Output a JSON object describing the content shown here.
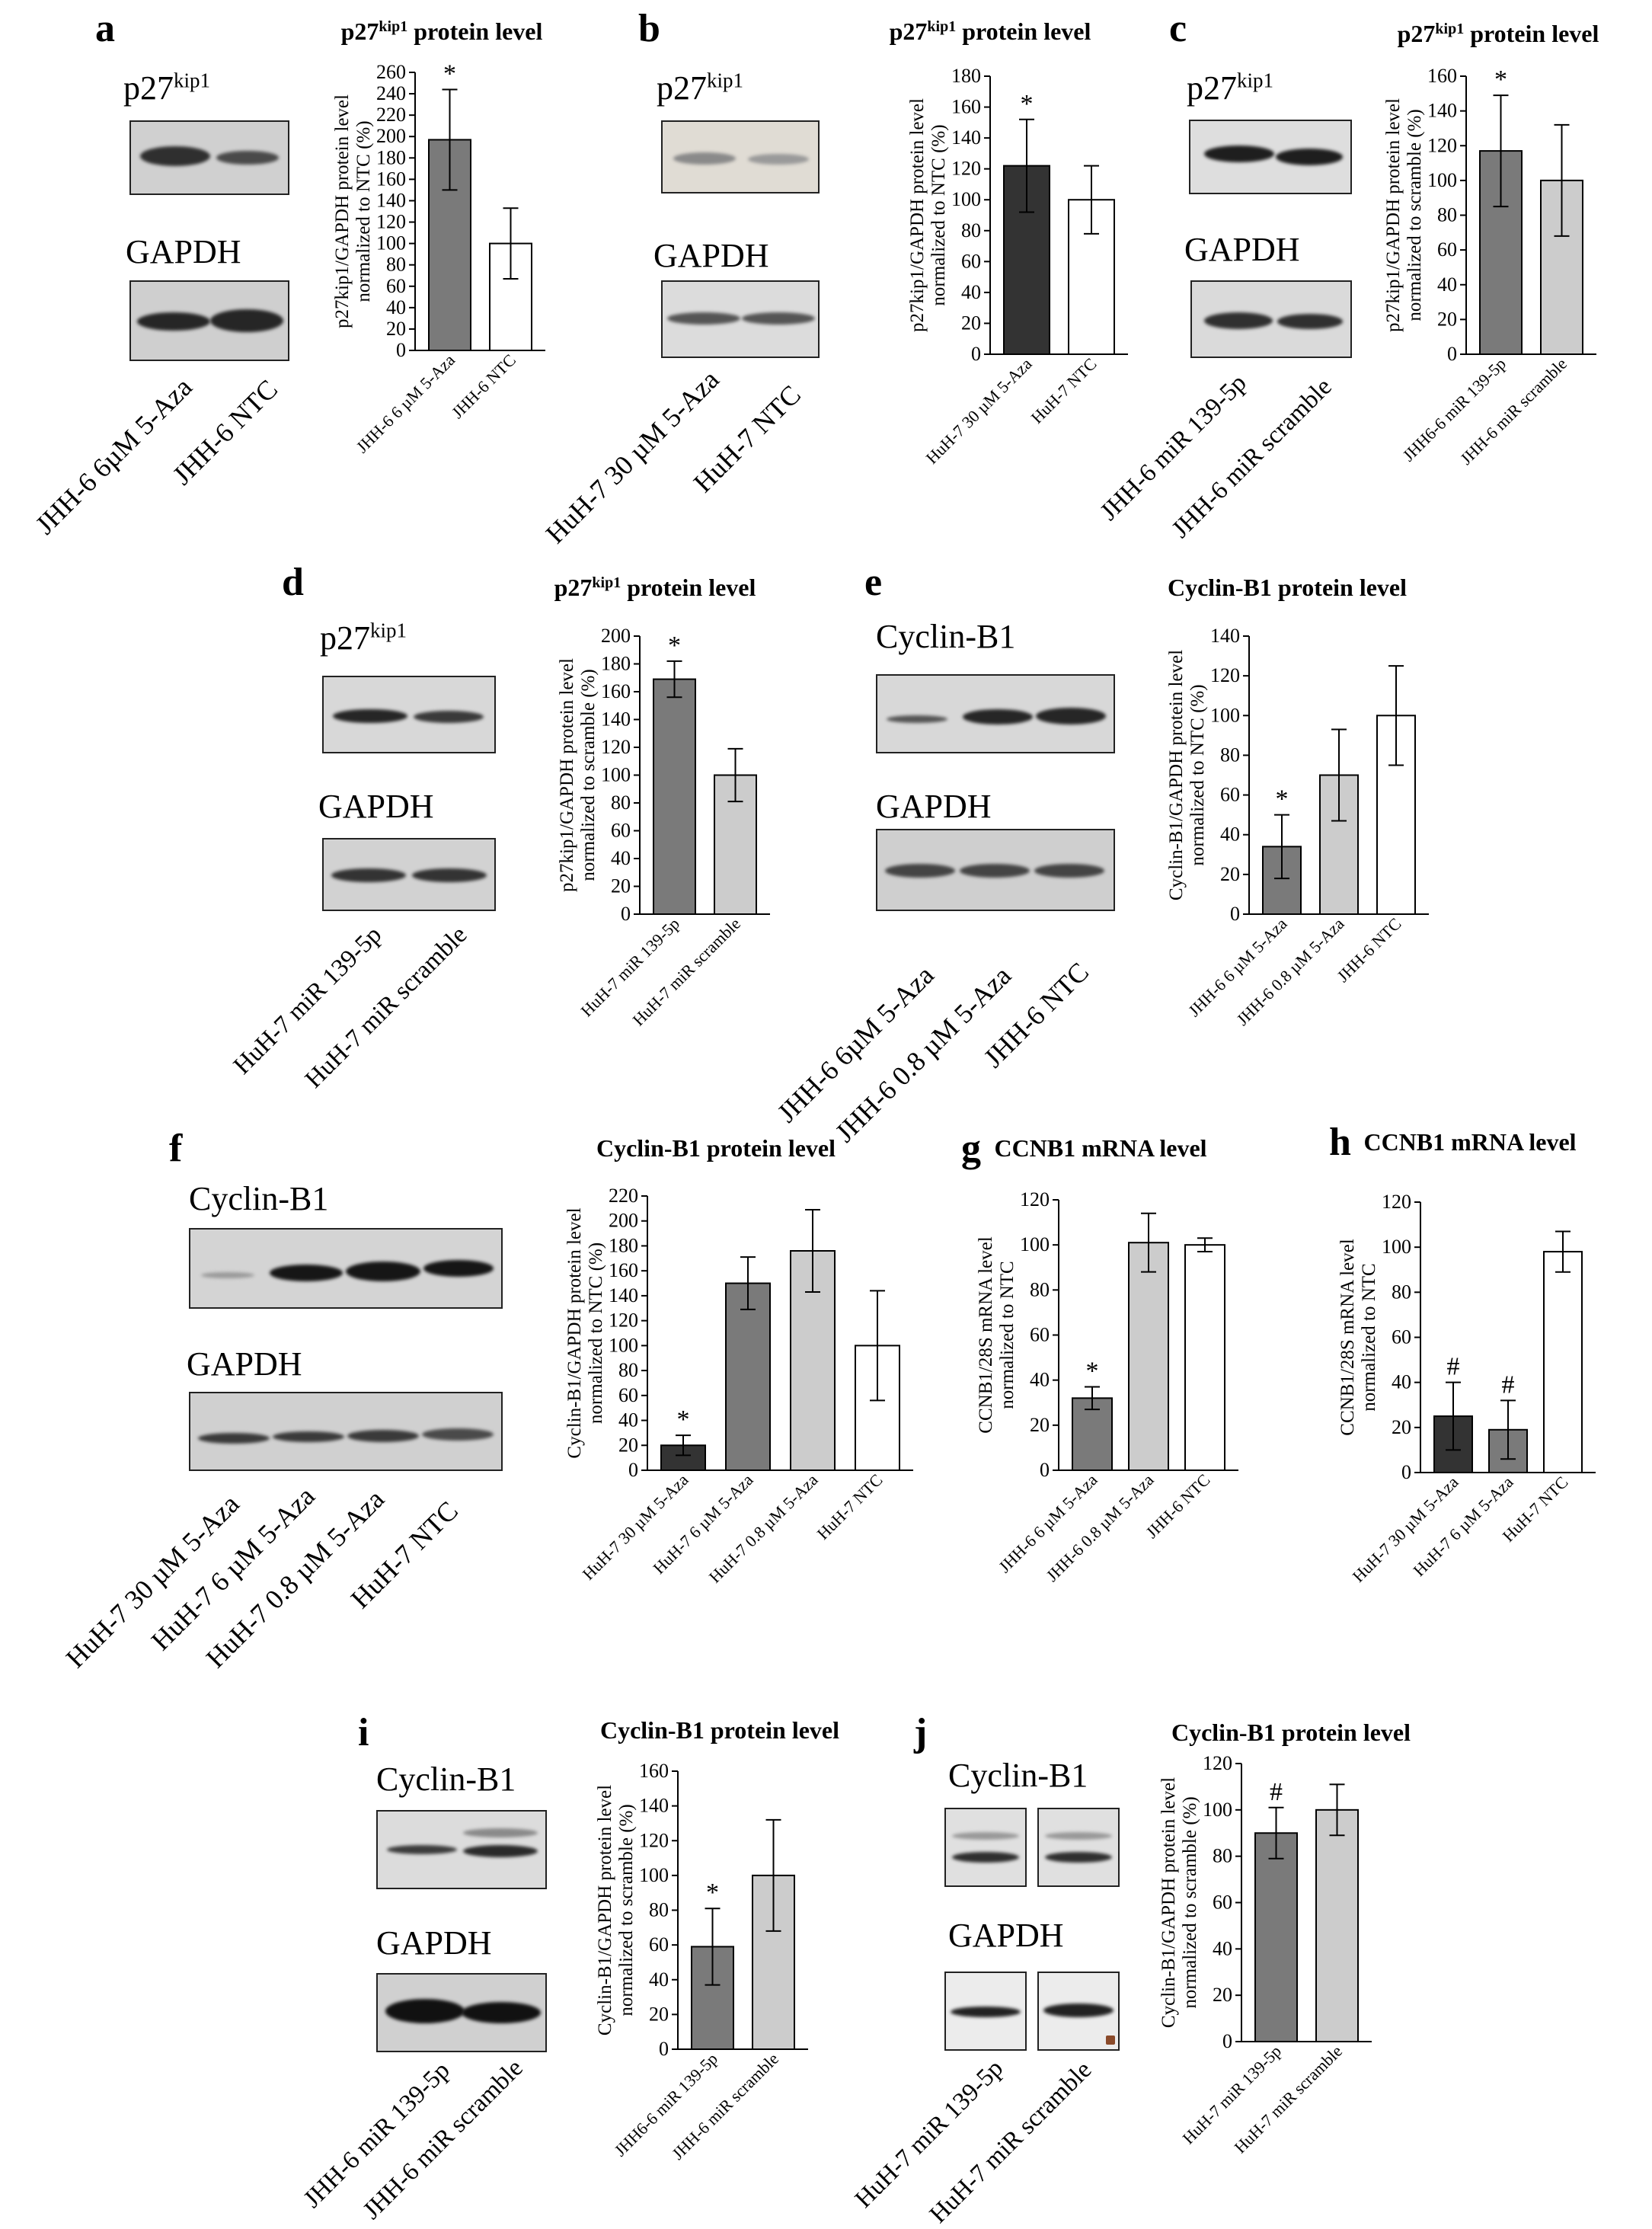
{
  "panels": [
    {
      "id": "a",
      "letter": "a",
      "top_label": "p27",
      "top_label_sup": "kip1",
      "bottom_label": "GAPDH",
      "lanes": [
        "JHH-6 6µM 5-Aza",
        "JHH-6 NTC"
      ],
      "chart_data": {
        "type": "bar",
        "title": "p27kip1 protein level",
        "title_base": "p27",
        "title_sup": "kip1",
        "title_rest": " protein level",
        "ylabel_line1": "p27kip1/GAPDH protein level",
        "ylabel_line2": "normalized to NTC (%)",
        "ylim": [
          0,
          260
        ],
        "yticks": [
          0,
          20,
          40,
          60,
          80,
          100,
          120,
          140,
          160,
          180,
          200,
          220,
          240,
          260
        ],
        "categories": [
          "JHH-6 6 µM 5-Aza",
          "JHH-6 NTC"
        ],
        "values": [
          197,
          100
        ],
        "errors": [
          47,
          33
        ],
        "colors": [
          "#7a7a7a",
          "#ffffff"
        ],
        "annotations": [
          "*",
          ""
        ]
      }
    },
    {
      "id": "b",
      "letter": "b",
      "top_label": "p27",
      "top_label_sup": "kip1",
      "bottom_label": "GAPDH",
      "lanes": [
        "HuH-7 30 µM 5-Aza",
        "HuH-7 NTC"
      ],
      "chart_data": {
        "type": "bar",
        "title": "p27kip1 protein level",
        "title_base": "p27",
        "title_sup": "kip1",
        "title_rest": " protein level",
        "ylabel_line1": "p27kip1/GAPDH protein level",
        "ylabel_line2": "normalized to NTC (%)",
        "ylim": [
          0,
          180
        ],
        "yticks": [
          0,
          20,
          40,
          60,
          80,
          100,
          120,
          140,
          160,
          180
        ],
        "categories": [
          "HuH-7 30 µM 5-Aza",
          "HuH-7 NTC"
        ],
        "values": [
          122,
          100
        ],
        "errors": [
          30,
          22
        ],
        "colors": [
          "#333333",
          "#ffffff"
        ],
        "annotations": [
          "*",
          ""
        ]
      }
    },
    {
      "id": "c",
      "letter": "c",
      "top_label": "p27",
      "top_label_sup": "kip1",
      "bottom_label": "GAPDH",
      "lanes": [
        "JHH-6 miR 139-5p",
        "JHH-6 miR scramble"
      ],
      "chart_data": {
        "type": "bar",
        "title": "p27kip1 protein level",
        "title_base": "p27",
        "title_sup": "kip1",
        "title_rest": " protein level",
        "ylabel_line1": "p27kip1/GAPDH protein level",
        "ylabel_line2": "normalized to scramble (%)",
        "ylim": [
          0,
          160
        ],
        "yticks": [
          0,
          20,
          40,
          60,
          80,
          100,
          120,
          140,
          160
        ],
        "categories": [
          "JHH6-6 miR 139-5p",
          "JHH-6 miR scramble"
        ],
        "values": [
          117,
          100
        ],
        "errors": [
          32,
          32
        ],
        "colors": [
          "#7a7a7a",
          "#cccccc"
        ],
        "annotations": [
          "*",
          ""
        ]
      }
    },
    {
      "id": "d",
      "letter": "d",
      "top_label": "p27",
      "top_label_sup": "kip1",
      "bottom_label": "GAPDH",
      "lanes": [
        "HuH-7 miR 139-5p",
        "HuH-7 miR scramble"
      ],
      "chart_data": {
        "type": "bar",
        "title": "p27kip1 protein level",
        "title_base": "p27",
        "title_sup": "kip1",
        "title_rest": " protein level",
        "ylabel_line1": "p27kip1/GAPDH protein level",
        "ylabel_line2": "normalized to scramble (%)",
        "ylim": [
          0,
          200
        ],
        "yticks": [
          0,
          20,
          40,
          60,
          80,
          100,
          120,
          140,
          160,
          180,
          200
        ],
        "categories": [
          "HuH-7 miR 139-5p",
          "HuH-7 miR scramble"
        ],
        "values": [
          169,
          100
        ],
        "errors": [
          13,
          19
        ],
        "colors": [
          "#7a7a7a",
          "#cccccc"
        ],
        "annotations": [
          "*",
          ""
        ]
      }
    },
    {
      "id": "e",
      "letter": "e",
      "top_label": "Cyclin-B1",
      "top_label_sup": "",
      "bottom_label": "GAPDH",
      "lanes": [
        "JHH-6 6µM 5-Aza",
        "JHH-6 0.8 µM 5-Aza",
        "JHH-6 NTC"
      ],
      "chart_data": {
        "type": "bar",
        "title": "Cyclin-B1 protein level",
        "title_base": "Cyclin-B1 protein level",
        "title_sup": "",
        "title_rest": "",
        "ylabel_line1": "Cyclin-B1/GAPDH protein level",
        "ylabel_line2": "normalized to NTC (%)",
        "ylim": [
          0,
          140
        ],
        "yticks": [
          0,
          20,
          40,
          60,
          80,
          100,
          120,
          140
        ],
        "categories": [
          "JHH-6 6 µM 5-Aza",
          "JHH-6 0.8 µM 5-Aza",
          "JHH-6 NTC"
        ],
        "values": [
          34,
          70,
          100
        ],
        "errors": [
          16,
          23,
          25
        ],
        "colors": [
          "#7a7a7a",
          "#cccccc",
          "#ffffff"
        ],
        "annotations": [
          "*",
          "",
          ""
        ]
      }
    },
    {
      "id": "f",
      "letter": "f",
      "top_label": "Cyclin-B1",
      "top_label_sup": "",
      "bottom_label": "GAPDH",
      "lanes": [
        "HuH-7 30 µM 5-Aza",
        "HuH-7 6 µM 5-Aza",
        "HuH-7 0.8 µM 5-Aza",
        "HuH-7 NTC"
      ],
      "chart_data": {
        "type": "bar",
        "title": "Cyclin-B1 protein level",
        "title_base": "Cyclin-B1 protein level",
        "title_sup": "",
        "title_rest": "",
        "ylabel_line1": "Cyclin-B1/GAPDH protein level",
        "ylabel_line2": "normalized to NTC (%)",
        "ylim": [
          0,
          220
        ],
        "yticks": [
          0,
          20,
          40,
          60,
          80,
          100,
          120,
          140,
          160,
          180,
          200,
          220
        ],
        "categories": [
          "HuH-7 30 µM 5-Aza",
          "HuH-7 6 µM 5-Aza",
          "HuH-7 0.8 µM 5-Aza",
          "HuH-7 NTC"
        ],
        "values": [
          20,
          150,
          176,
          100
        ],
        "errors": [
          8,
          21,
          33,
          44
        ],
        "colors": [
          "#333333",
          "#7a7a7a",
          "#cccccc",
          "#ffffff"
        ],
        "annotations": [
          "*",
          "",
          "",
          ""
        ]
      }
    },
    {
      "id": "g",
      "letter": "g",
      "chart_data": {
        "type": "bar",
        "title": "CCNB1 mRNA level",
        "title_base": "CCNB1 mRNA level",
        "title_sup": "",
        "title_rest": "",
        "ylabel_line1": "CCNB1/28S mRNA level",
        "ylabel_line2": "normalized to NTC",
        "ylim": [
          0,
          120
        ],
        "yticks": [
          0,
          20,
          40,
          60,
          80,
          100,
          120
        ],
        "categories": [
          "JHH-6 6 µM 5-Aza",
          "JHH-6 0.8 µM 5-Aza",
          "JHH-6 NTC"
        ],
        "values": [
          32,
          101,
          100
        ],
        "errors": [
          5,
          13,
          3
        ],
        "colors": [
          "#7a7a7a",
          "#cccccc",
          "#ffffff"
        ],
        "annotations": [
          "*",
          "",
          ""
        ]
      }
    },
    {
      "id": "h",
      "letter": "h",
      "chart_data": {
        "type": "bar",
        "title": "CCNB1 mRNA level",
        "title_base": "CCNB1 mRNA level",
        "title_sup": "",
        "title_rest": "",
        "ylabel_line1": "CCNB1/28S mRNA level",
        "ylabel_line2": "normalized to NTC",
        "ylim": [
          0,
          120
        ],
        "yticks": [
          0,
          20,
          40,
          60,
          80,
          100,
          120
        ],
        "categories": [
          "HuH-7 30 µM 5-Aza",
          "HuH-7 6 µM 5-Aza",
          "HuH-7 NTC"
        ],
        "values": [
          25,
          19,
          98
        ],
        "errors": [
          15,
          13,
          9
        ],
        "colors": [
          "#333333",
          "#7a7a7a",
          "#ffffff"
        ],
        "annotations": [
          "#",
          "#",
          ""
        ]
      }
    },
    {
      "id": "i",
      "letter": "i",
      "top_label": "Cyclin-B1",
      "top_label_sup": "",
      "bottom_label": "GAPDH",
      "lanes": [
        "JHH-6 miR 139-5p",
        "JHH-6 miR scramble"
      ],
      "chart_data": {
        "type": "bar",
        "title": "Cyclin-B1 protein level",
        "title_base": "Cyclin-B1 protein level",
        "title_sup": "",
        "title_rest": "",
        "ylabel_line1": "Cyclin-B1/GAPDH protein level",
        "ylabel_line2": "normalized to scramble (%)",
        "ylim": [
          0,
          160
        ],
        "yticks": [
          0,
          20,
          40,
          60,
          80,
          100,
          120,
          140,
          160
        ],
        "categories": [
          "JHH6-6 miR 139-5p",
          "JHH-6 miR scramble"
        ],
        "values": [
          59,
          100
        ],
        "errors": [
          22,
          32
        ],
        "colors": [
          "#7a7a7a",
          "#cccccc"
        ],
        "annotations": [
          "*",
          ""
        ]
      }
    },
    {
      "id": "j",
      "letter": "j",
      "top_label": "Cyclin-B1",
      "top_label_sup": "",
      "bottom_label": "GAPDH",
      "lanes": [
        "HuH-7 miR 139-5p",
        "HuH-7 miR scramble"
      ],
      "chart_data": {
        "type": "bar",
        "title": "Cyclin-B1 protein level",
        "title_base": "Cyclin-B1 protein level",
        "title_sup": "",
        "title_rest": "",
        "ylabel_line1": "Cyclin-B1/GAPDH protein level",
        "ylabel_line2": "normalized to scramble (%)",
        "ylim": [
          0,
          120
        ],
        "yticks": [
          0,
          20,
          40,
          60,
          80,
          100,
          120
        ],
        "categories": [
          "HuH-7 miR 139-5p",
          "HuH-7 miR scramble"
        ],
        "values": [
          90,
          100
        ],
        "errors": [
          11,
          11
        ],
        "colors": [
          "#7a7a7a",
          "#cccccc"
        ],
        "annotations": [
          "#",
          ""
        ]
      }
    }
  ]
}
